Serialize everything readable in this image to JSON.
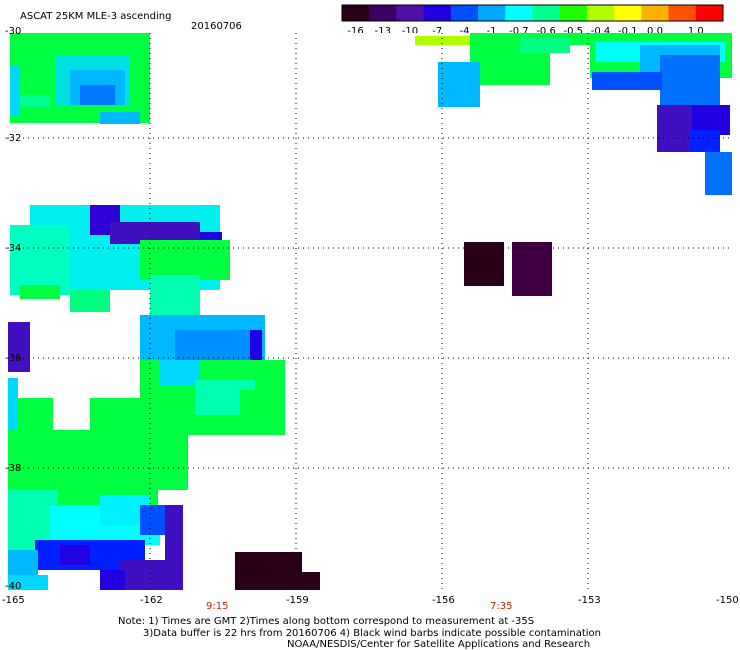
{
  "header": {
    "title": "ASCAT 25KM MLE-3 ascending",
    "date": "20160706"
  },
  "legend": {
    "labels": [
      "-16",
      "-13",
      "-10",
      "-7",
      "-4",
      "-1",
      "-0.7",
      "-0.6",
      "-0.5",
      "-0.4",
      "-0.1",
      "0.0",
      "1.0"
    ],
    "colors": [
      "#2a0018",
      "#3e0060",
      "#5010a8",
      "#2000e0",
      "#0050ff",
      "#00a8ff",
      "#00ffff",
      "#00ff90",
      "#20ff00",
      "#b0ff00",
      "#ffff00",
      "#ffb000",
      "#ff5000",
      "#ff0000"
    ]
  },
  "axes": {
    "y_labels": [
      "-30",
      "-32",
      "-34",
      "-36",
      "-38",
      "-40"
    ],
    "x_labels": [
      "-165",
      "-162",
      "-159",
      "-156",
      "-153",
      "-150"
    ]
  },
  "times": [
    "9:15",
    "7:35"
  ],
  "notes": {
    "line1": "Note: 1) Times are GMT 2)Times along bottom correspond to measurement at -35S",
    "line2": "3)Data buffer is 22 hrs from 20160706 4) Black wind barbs indicate possible contamination",
    "line3": "NOAA/NESDIS/Center for Satellite Applications and Research"
  }
}
